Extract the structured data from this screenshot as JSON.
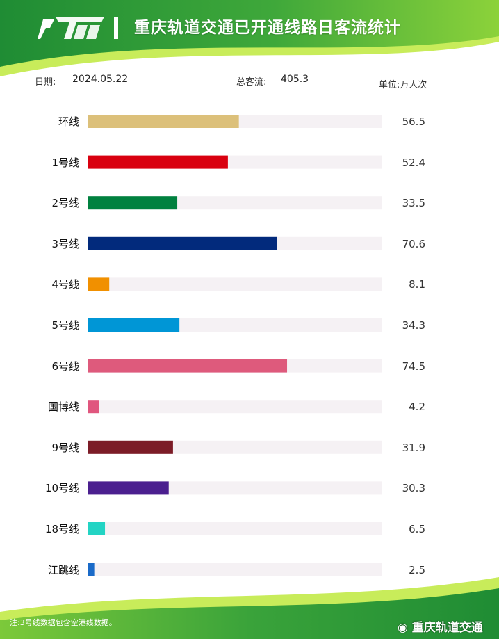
{
  "header": {
    "logo_text": "CRT",
    "title": "重庆轨道交通已开通线路日客流统计"
  },
  "meta": {
    "date_label": "日期:",
    "date_value": "2024.05.22",
    "total_label": "总客流:",
    "total_value": "405.3",
    "unit": "单位:万人次"
  },
  "footer": {
    "note": "注:3号线数据包含空港线数据。",
    "weibo": "重庆轨道交通"
  },
  "colors": {
    "header_green": "#2e9a3a",
    "track": "#f5f1f4"
  },
  "chart_data": {
    "type": "bar",
    "orientation": "horizontal",
    "xlim": [
      0,
      110
    ],
    "categories": [
      "环线",
      "1号线",
      "2号线",
      "3号线",
      "4号线",
      "5号线",
      "6号线",
      "国博线",
      "9号线",
      "10号线",
      "18号线",
      "江跳线"
    ],
    "values": [
      56.5,
      52.4,
      33.5,
      70.6,
      8.1,
      34.3,
      74.5,
      4.2,
      31.9,
      30.3,
      6.5,
      2.5
    ],
    "value_labels": [
      "56.5",
      "52.4",
      "33.5",
      "70.6",
      "8.1",
      "34.3",
      "74.5",
      "4.2",
      "31.9",
      "30.3",
      "6.5",
      "2.5"
    ],
    "colors": [
      "#dcc07a",
      "#d9000f",
      "#00813f",
      "#022a7c",
      "#f19000",
      "#0096d6",
      "#de5a7c",
      "#e0567e",
      "#7c1c27",
      "#4b1f8f",
      "#23d4c4",
      "#1a6ac8"
    ],
    "grid": false,
    "legend": "none"
  }
}
